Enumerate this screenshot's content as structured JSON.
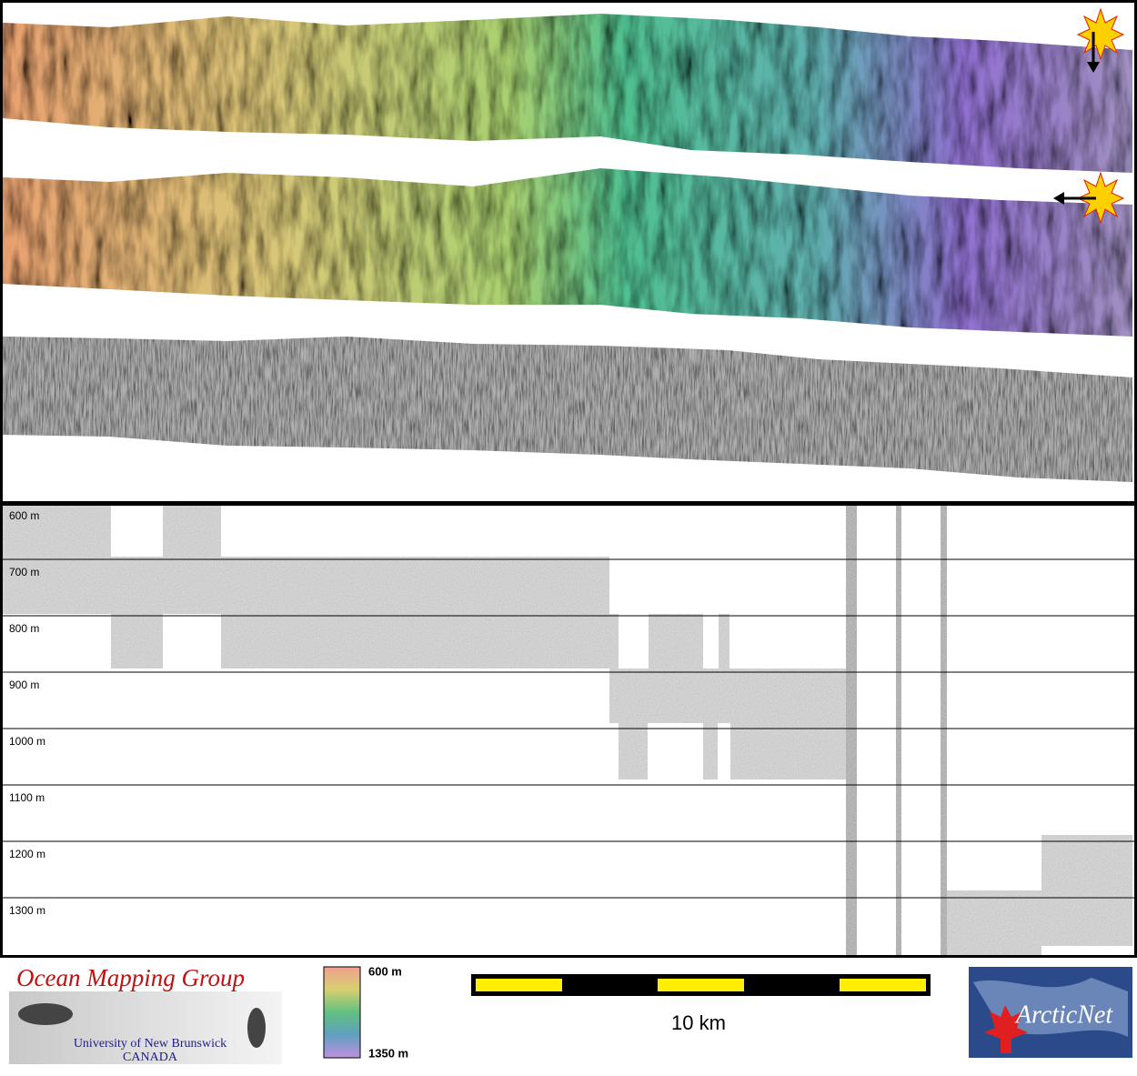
{
  "depth_labels": [
    "600 m",
    "700 m",
    "800 m",
    "900 m",
    "1000 m",
    "1100 m",
    "1200 m",
    "1300 m"
  ],
  "color_legend": {
    "top": "600 m",
    "bottom": "1350 m"
  },
  "scale_bar": {
    "label": "10 km"
  },
  "logos": {
    "ocean_mapping": {
      "title": "Ocean Mapping Group",
      "line1": "University of New Brunswick",
      "line2": "CANADA"
    },
    "arcticnet": {
      "title": "ArcticNet"
    }
  }
}
